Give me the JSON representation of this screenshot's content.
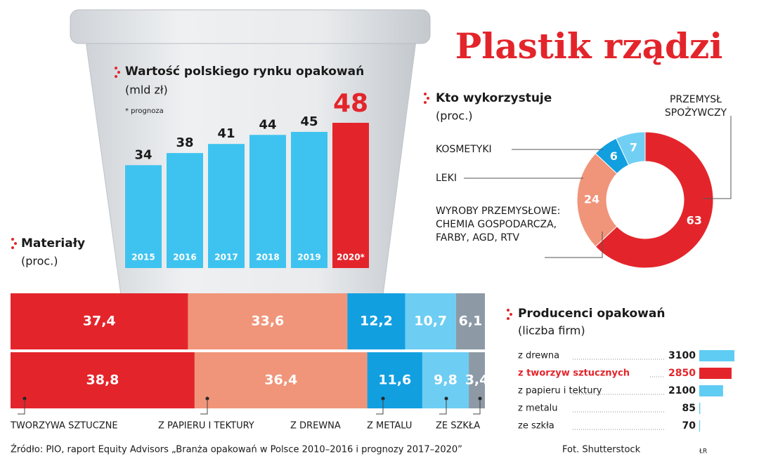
{
  "title": "Plastik rządzi",
  "footer": {
    "source": "Źródło: PIO, raport Equity Advisors „Branża opakowań w Polsce 2010–2016 i prognozy 2017–2020”",
    "photo": "Fot. Shutterstock",
    "author": "ŁR"
  },
  "chart_data": [
    {
      "type": "bar",
      "title": "Wartość polskiego rynku opakowań",
      "subtitle": "(mld zł)",
      "note": "* prognoza",
      "categories": [
        "2015",
        "2016",
        "2017",
        "2018",
        "2019",
        "2020*"
      ],
      "values": [
        34,
        38,
        41,
        44,
        45,
        48
      ],
      "colors": [
        "#3ec3f0",
        "#3ec3f0",
        "#3ec3f0",
        "#3ec3f0",
        "#3ec3f0",
        "#e3252b"
      ],
      "label_colors": [
        "#1a1a1a",
        "#1a1a1a",
        "#1a1a1a",
        "#1a1a1a",
        "#1a1a1a",
        "#e3252b"
      ]
    },
    {
      "type": "donut",
      "title": "Kto wykorzystuje",
      "subtitle": "(proc.)",
      "categories": [
        "PRZEMYSŁ SPOŻYWCZY",
        "WYROBY PRZEMYSŁOWE: CHEMIA GOSPODARCZA, FARBY,  AGD, RTV",
        "LEKI",
        "KOSMETYKI"
      ],
      "values": [
        63,
        24,
        6,
        7
      ],
      "colors": [
        "#e3252b",
        "#f0957a",
        "#119fe0",
        "#71cff3"
      ]
    },
    {
      "type": "stacked-hbar",
      "title": "Materiały",
      "subtitle": "(proc.)",
      "categories": [
        null,
        null
      ],
      "series": [
        {
          "name": "TWORZYWA SZTUCZNE",
          "color": "#e3252b",
          "values": [
            37.4,
            38.8
          ],
          "value_labels": [
            "37,4",
            "38,8"
          ]
        },
        {
          "name": "Z PAPIERU I TEKTURY",
          "color": "#f0957a",
          "values": [
            33.6,
            36.4
          ],
          "value_labels": [
            "33,6",
            "36,4"
          ]
        },
        {
          "name": "Z DREWNA",
          "color": "#129fe0",
          "values": [
            12.2,
            11.6
          ],
          "value_labels": [
            "12,2",
            "11,6"
          ]
        },
        {
          "name": "Z METALU",
          "color": "#6dcdf3",
          "values": [
            10.7,
            9.8
          ],
          "value_labels": [
            "10,7",
            "9,8"
          ]
        },
        {
          "name": "ZE SZKŁA",
          "color": "#8d9aa6",
          "values": [
            6.1,
            3.4
          ],
          "value_labels": [
            "6,1",
            "3,4"
          ]
        }
      ]
    },
    {
      "type": "hbar",
      "title": "Producenci opakowań",
      "subtitle": "(liczba firm)",
      "categories": [
        "z drewna",
        "z tworzyw sztucznych",
        "z papieru i tektury",
        "z metalu",
        "ze szkła"
      ],
      "values": [
        3100,
        2850,
        2100,
        85,
        70
      ],
      "colors": [
        "#5fccf4",
        "#e3252b",
        "#5fccf4",
        "#5fccf4",
        "#5fccf4"
      ],
      "label_colors": [
        "#1a1a1a",
        "#e3252b",
        "#1a1a1a",
        "#1a1a1a",
        "#1a1a1a"
      ]
    }
  ]
}
